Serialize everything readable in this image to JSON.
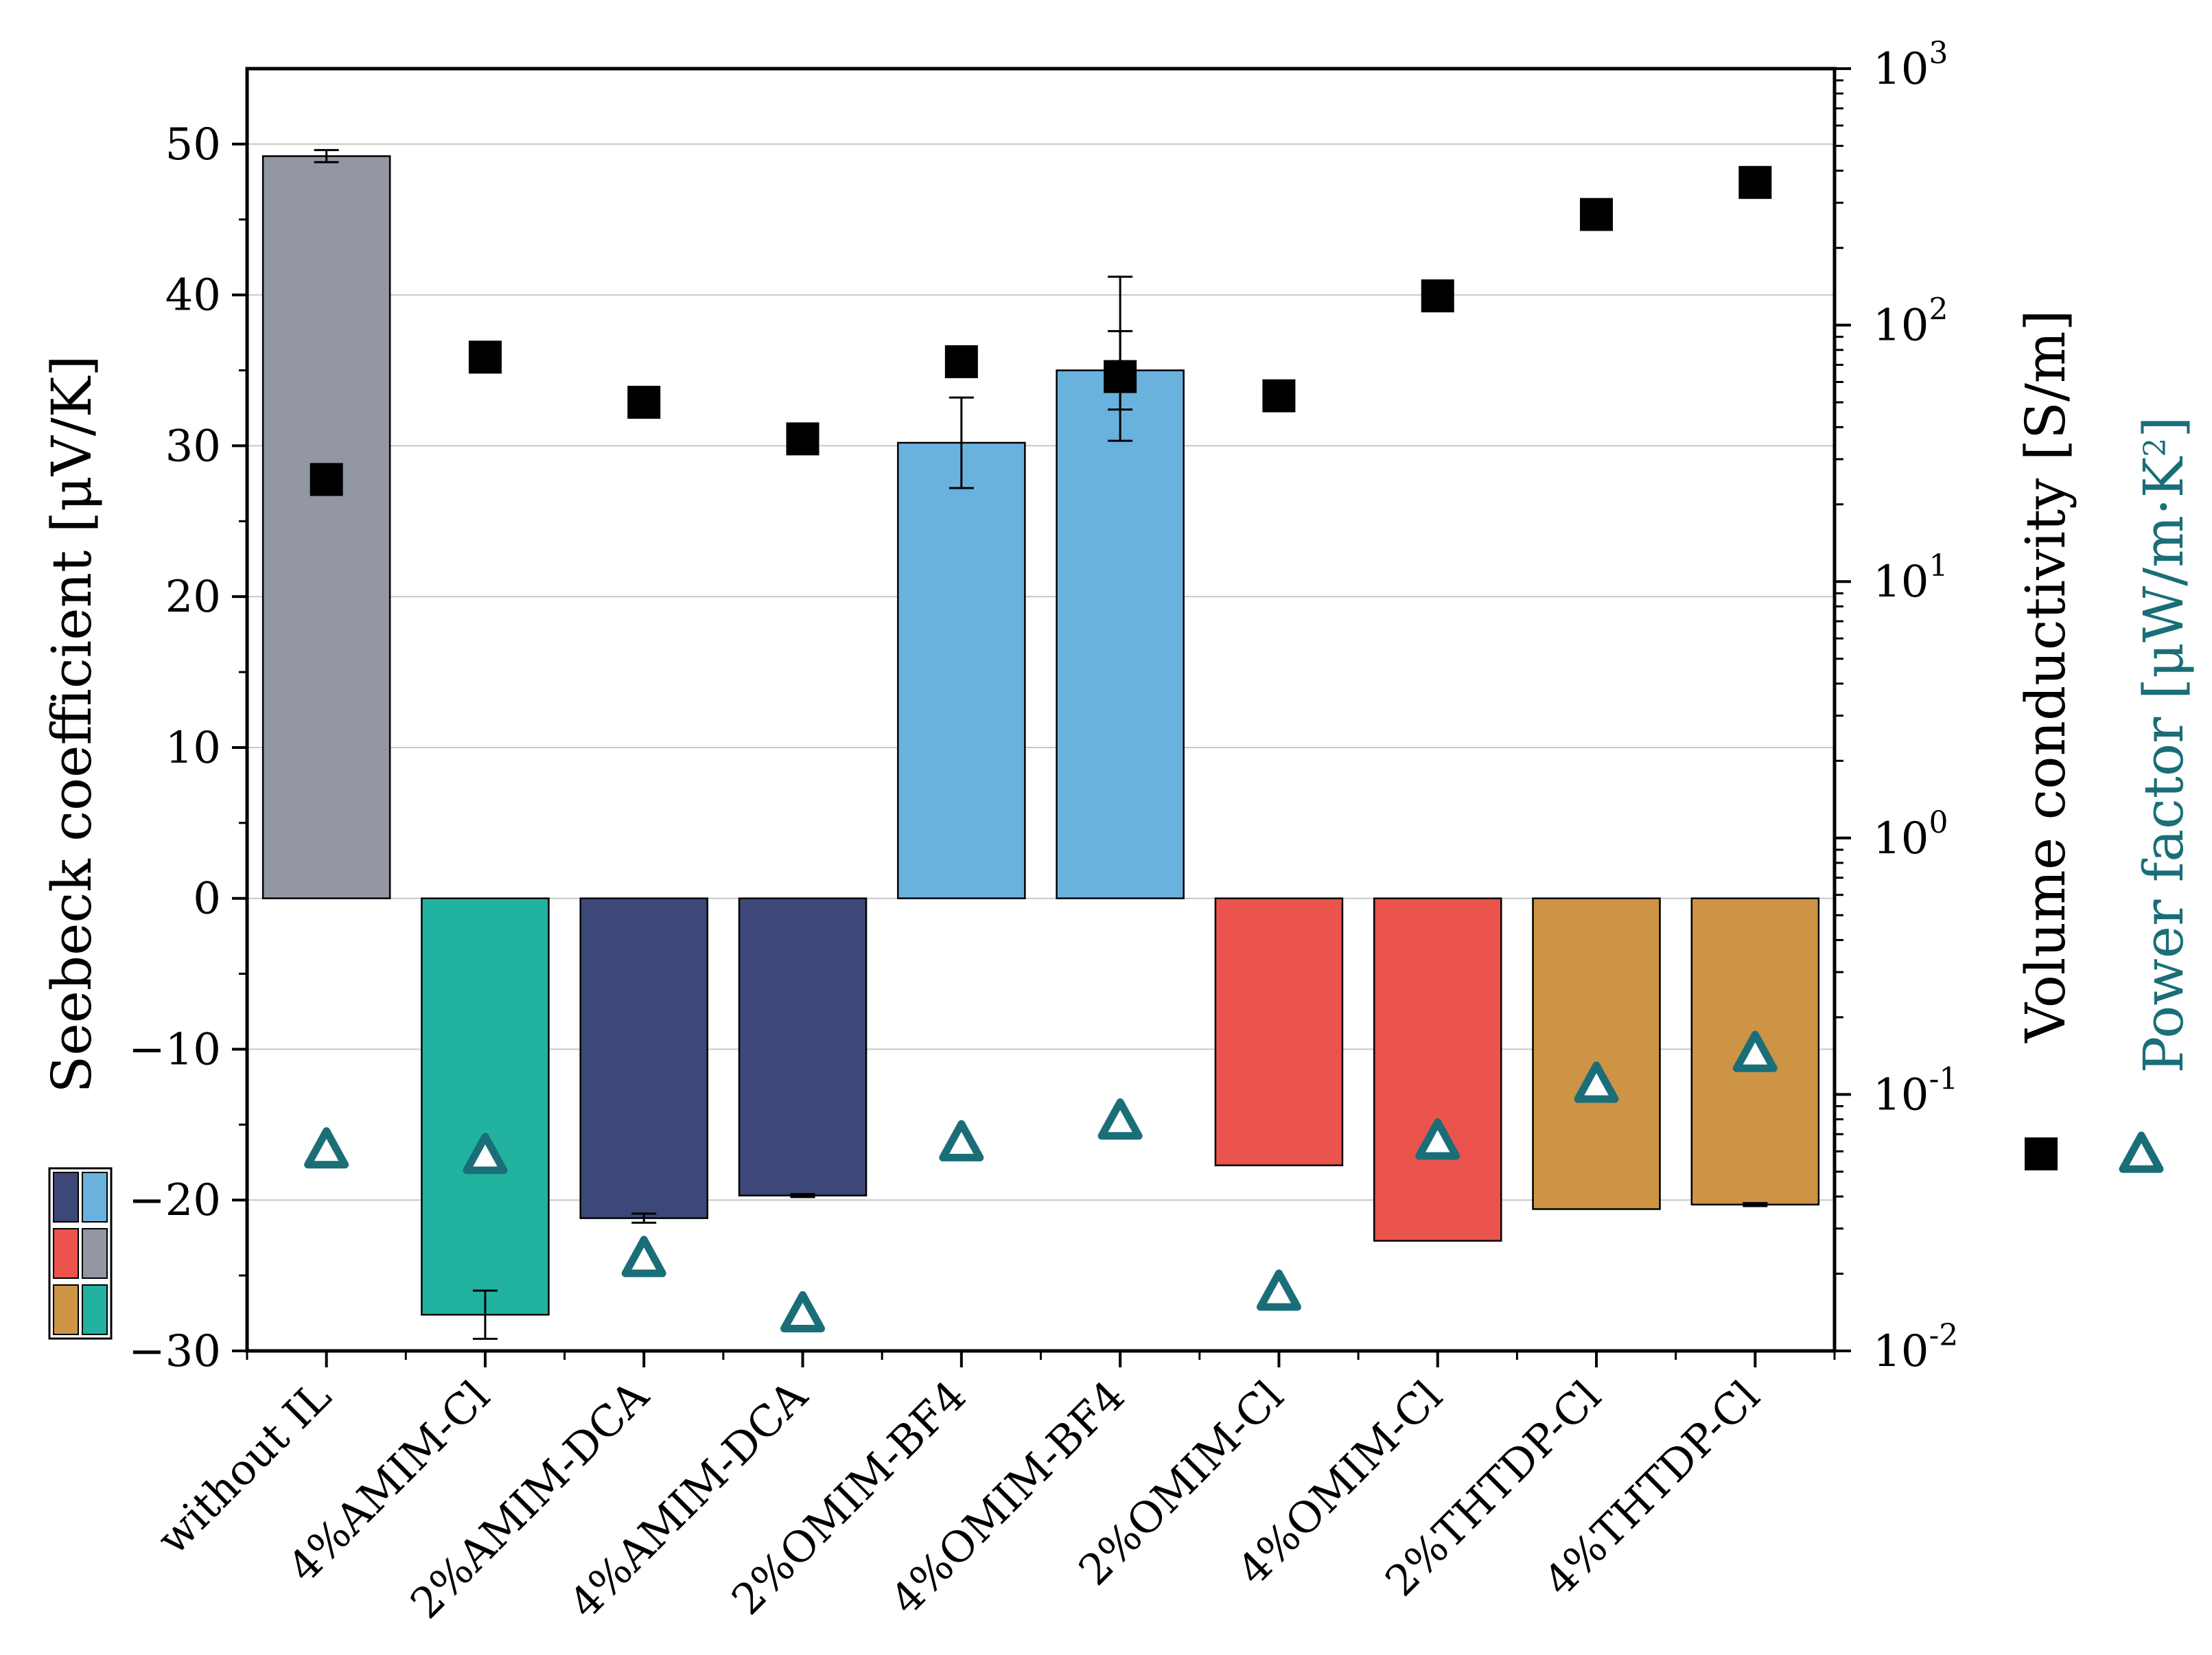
{
  "chart_data": {
    "type": "bar",
    "categories": [
      "without IL",
      "4%AMIM-Cl",
      "2%AMIM-DCA",
      "4%AMIM-DCA",
      "2%OMIM-BF4",
      "4%OMIM-BF4",
      "2%OMIM-Cl",
      "4%OMIM-Cl",
      "2%THTDP-Cl",
      "4%THTDP-Cl"
    ],
    "left_axis": {
      "title": "Seebeck coefficient [μV/K]",
      "ylim": [
        -30,
        55
      ],
      "ticks": [
        -30,
        -20,
        -10,
        0,
        10,
        20,
        30,
        40,
        50
      ],
      "tick_labels": [
        "−30",
        "−20",
        "−10",
        "0",
        "10",
        "20",
        "30",
        "40",
        "50"
      ]
    },
    "right_axis": {
      "scale": "log",
      "ylim": [
        0.01,
        1000
      ],
      "ticks": [
        0.01,
        0.1,
        1,
        10,
        100,
        1000
      ],
      "tick_base": "10",
      "tick_exponents": [
        "-2",
        "-1",
        "0",
        "1",
        "2",
        "3"
      ],
      "title_conductivity": "Volume conductivity [S/m]",
      "title_power_prefix": "Power factor [μW/m·K",
      "title_power_exp": "2",
      "title_power_suffix": "]"
    },
    "series": [
      {
        "name": "Seebeck coefficient",
        "kind": "bar",
        "axis": "left",
        "values": [
          49.2,
          -27.6,
          -21.2,
          -19.7,
          30.2,
          35.0,
          -17.7,
          -22.7,
          -20.6,
          -20.3
        ],
        "errors": [
          0.4,
          1.6,
          0.3,
          0.1,
          3.0,
          2.6,
          0.0,
          0.0,
          0.0,
          0.1
        ],
        "colors": [
          "#9396a3",
          "#22b2a0",
          "#3d4878",
          "#3d4878",
          "#69b2de",
          "#69b2de",
          "#ea544d",
          "#ea544d",
          "#cc9444",
          "#cc9444"
        ]
      },
      {
        "name": "Volume conductivity",
        "kind": "scatter",
        "marker": "square",
        "axis": "right",
        "values": [
          25,
          75,
          50,
          36,
          72,
          63,
          53,
          130,
          270,
          360
        ],
        "errors_log_up": [
          0,
          0,
          0,
          0,
          0,
          1.45,
          0,
          0,
          0,
          0
        ],
        "errors_log_down": [
          0,
          0,
          0,
          0,
          0,
          0.78,
          0,
          0,
          0,
          0
        ],
        "color": "#000000"
      },
      {
        "name": "Power factor",
        "kind": "scatter",
        "marker": "triangle",
        "axis": "right",
        "values": [
          0.061,
          0.058,
          0.023,
          0.014,
          0.065,
          0.079,
          0.017,
          0.066,
          0.11,
          0.145
        ],
        "color": "#1a6e78"
      }
    ],
    "legend_swatches": [
      [
        "#3d4878",
        "#69b2de"
      ],
      [
        "#ea544d",
        "#9396a3"
      ],
      [
        "#cc9444",
        "#22b2a0"
      ]
    ],
    "grid": true
  }
}
